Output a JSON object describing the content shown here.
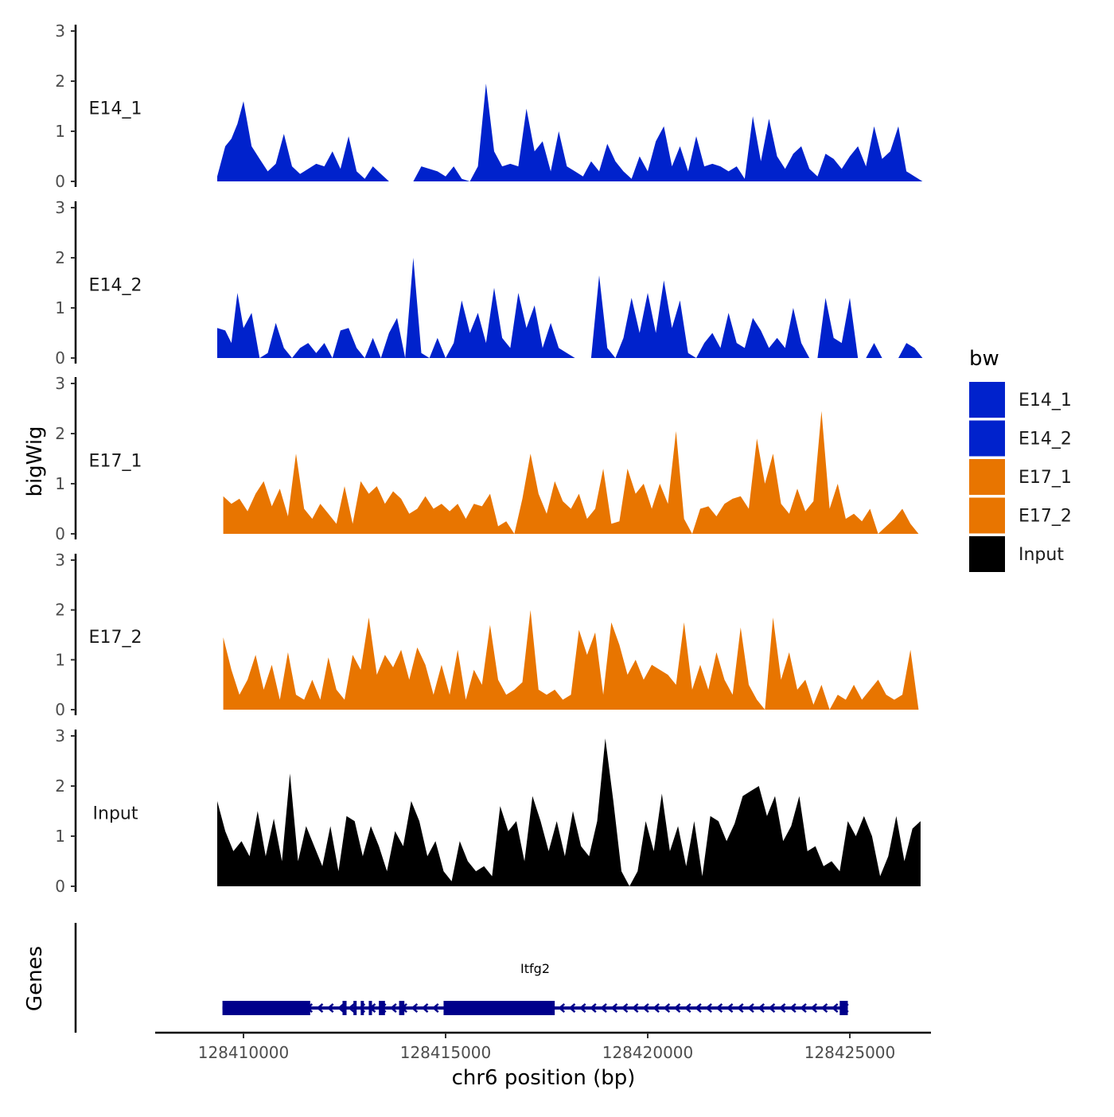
{
  "chart_data": {
    "type": "area",
    "title": "",
    "xlabel": "chr6 position (bp)",
    "ylabel": "bigWig",
    "gene_track_label": "Genes",
    "xlim": [
      128407500,
      128426800
    ],
    "ylim": [
      0,
      3
    ],
    "yticks": [
      0,
      1,
      2,
      3
    ],
    "xticks": [
      128410000,
      128415000,
      128420000,
      128425000
    ],
    "xtick_labels": [
      "128410000",
      "128415000",
      "128420000",
      "128425000"
    ],
    "legend": {
      "title": "bw",
      "position": "right",
      "entries": [
        {
          "label": "E14_1",
          "color": "#0022cc"
        },
        {
          "label": "E14_2",
          "color": "#0022cc"
        },
        {
          "label": "E17_1",
          "color": "#e87500"
        },
        {
          "label": "E17_2",
          "color": "#e87500"
        },
        {
          "label": "Input",
          "color": "#000000"
        }
      ]
    },
    "series": [
      {
        "name": "E14_1",
        "color": "#0022cc",
        "x": [
          128409350,
          128409550,
          128409700,
          128409850,
          128410000,
          128410200,
          128410400,
          128410600,
          128410800,
          128411000,
          128411200,
          128411400,
          128411600,
          128411800,
          128412000,
          128412200,
          128412400,
          128412600,
          128412800,
          128413000,
          128413200,
          128413400,
          128413600,
          128413800,
          128414000,
          128414200,
          128414400,
          128414600,
          128414800,
          128415000,
          128415200,
          128415400,
          128415600,
          128415800,
          128416000,
          128416200,
          128416400,
          128416600,
          128416800,
          128417000,
          128417200,
          128417400,
          128417600,
          128417800,
          128418000,
          128418200,
          128418400,
          128418600,
          128418800,
          128419000,
          128419200,
          128419400,
          128419600,
          128419800,
          128420000,
          128420200,
          128420400,
          128420600,
          128420800,
          128421000,
          128421200,
          128421400,
          128421600,
          128421800,
          128422000,
          128422200,
          128422400,
          128422600,
          128422800,
          128423000,
          128423200,
          128423400,
          128423600,
          128423800,
          128424000,
          128424200,
          128424400,
          128424600,
          128424800,
          128425000,
          128425200,
          128425400,
          128425600,
          128425800,
          128426000,
          128426200,
          128426400,
          128426600,
          128426800
        ],
        "values": [
          0.1,
          0.7,
          0.85,
          1.15,
          1.6,
          0.7,
          0.45,
          0.2,
          0.35,
          0.95,
          0.3,
          0.15,
          0.25,
          0.35,
          0.3,
          0.6,
          0.25,
          0.9,
          0.2,
          0.05,
          0.3,
          0.15,
          0,
          0,
          0,
          0,
          0.3,
          0.25,
          0.2,
          0.1,
          0.3,
          0.05,
          0,
          0.3,
          1.95,
          0.6,
          0.3,
          0.35,
          0.3,
          1.45,
          0.6,
          0.8,
          0.2,
          1.0,
          0.3,
          0.2,
          0.1,
          0.4,
          0.2,
          0.75,
          0.4,
          0.2,
          0.05,
          0.5,
          0.2,
          0.8,
          1.1,
          0.3,
          0.7,
          0.2,
          0.9,
          0.3,
          0.35,
          0.3,
          0.2,
          0.3,
          0.05,
          1.3,
          0.4,
          1.25,
          0.5,
          0.25,
          0.55,
          0.7,
          0.25,
          0.1,
          0.55,
          0.45,
          0.25,
          0.5,
          0.7,
          0.3,
          1.1,
          0.45,
          0.6,
          1.1,
          0.2,
          0.1,
          0
        ]
      },
      {
        "name": "E14_2",
        "color": "#0022cc",
        "x": [
          128409350,
          128409550,
          128409700,
          128409850,
          128410000,
          128410200,
          128410400,
          128410600,
          128410800,
          128411000,
          128411200,
          128411400,
          128411600,
          128411800,
          128412000,
          128412200,
          128412400,
          128412600,
          128412800,
          128413000,
          128413200,
          128413400,
          128413600,
          128413800,
          128414000,
          128414200,
          128414400,
          128414600,
          128414800,
          128415000,
          128415200,
          128415400,
          128415600,
          128415800,
          128416000,
          128416200,
          128416400,
          128416600,
          128416800,
          128417000,
          128417200,
          128417400,
          128417600,
          128417800,
          128418000,
          128418200,
          128418400,
          128418600,
          128418800,
          128419000,
          128419200,
          128419400,
          128419600,
          128419800,
          128420000,
          128420200,
          128420400,
          128420600,
          128420800,
          128421000,
          128421200,
          128421400,
          128421600,
          128421800,
          128422000,
          128422200,
          128422400,
          128422600,
          128422800,
          128423000,
          128423200,
          128423400,
          128423600,
          128423800,
          128424000,
          128424200,
          128424400,
          128424600,
          128424800,
          128425000,
          128425200,
          128425400,
          128425600,
          128425800,
          128426000,
          128426200,
          128426400,
          128426600,
          128426800
        ],
        "values": [
          0.6,
          0.55,
          0.3,
          1.3,
          0.6,
          0.9,
          0,
          0.1,
          0.7,
          0.2,
          0,
          0.2,
          0.3,
          0.1,
          0.3,
          0,
          0.55,
          0.6,
          0.2,
          0,
          0.4,
          0,
          0.5,
          0.8,
          0,
          2.0,
          0.1,
          0,
          0.4,
          0,
          0.3,
          1.15,
          0.5,
          0.9,
          0.3,
          1.4,
          0.4,
          0.2,
          1.3,
          0.6,
          1.05,
          0.2,
          0.7,
          0.2,
          0.1,
          0,
          0,
          0,
          1.65,
          0.2,
          0,
          0.4,
          1.2,
          0.5,
          1.3,
          0.5,
          1.55,
          0.6,
          1.15,
          0.1,
          0,
          0.3,
          0.5,
          0.2,
          0.9,
          0.3,
          0.2,
          0.8,
          0.55,
          0.2,
          0.4,
          0.2,
          1.0,
          0.3,
          0,
          0,
          1.2,
          0.4,
          0.3,
          1.2,
          0,
          0,
          0.3,
          0,
          0,
          0,
          0.3,
          0.2,
          0
        ]
      },
      {
        "name": "E17_1",
        "color": "#e87500",
        "x": [
          128409500,
          128409700,
          128409900,
          128410100,
          128410300,
          128410500,
          128410700,
          128410900,
          128411100,
          128411300,
          128411500,
          128411700,
          128411900,
          128412100,
          128412300,
          128412500,
          128412700,
          128412900,
          128413100,
          128413300,
          128413500,
          128413700,
          128413900,
          128414100,
          128414300,
          128414500,
          128414700,
          128414900,
          128415100,
          128415300,
          128415500,
          128415700,
          128415900,
          128416100,
          128416300,
          128416500,
          128416700,
          128416900,
          128417100,
          128417300,
          128417500,
          128417700,
          128417900,
          128418100,
          128418300,
          128418500,
          128418700,
          128418900,
          128419100,
          128419300,
          128419500,
          128419700,
          128419900,
          128420100,
          128420300,
          128420500,
          128420700,
          128420900,
          128421100,
          128421300,
          128421500,
          128421700,
          128421900,
          128422100,
          128422300,
          128422500,
          128422700,
          128422900,
          128423100,
          128423300,
          128423500,
          128423700,
          128423900,
          128424100,
          128424300,
          128424500,
          128424700,
          128424900,
          128425100,
          128425300,
          128425500,
          128425700,
          128425900,
          128426100,
          128426300,
          128426500,
          128426700
        ],
        "values": [
          0.75,
          0.6,
          0.7,
          0.45,
          0.8,
          1.05,
          0.55,
          0.9,
          0.35,
          1.6,
          0.5,
          0.3,
          0.6,
          0.4,
          0.2,
          0.95,
          0.2,
          1.05,
          0.8,
          0.95,
          0.6,
          0.85,
          0.7,
          0.4,
          0.5,
          0.75,
          0.5,
          0.6,
          0.45,
          0.6,
          0.3,
          0.6,
          0.55,
          0.8,
          0.15,
          0.25,
          0,
          0.7,
          1.6,
          0.8,
          0.4,
          1.05,
          0.65,
          0.5,
          0.8,
          0.3,
          0.5,
          1.3,
          0.2,
          0.25,
          1.3,
          0.8,
          1.0,
          0.5,
          1.0,
          0.6,
          2.05,
          0.3,
          0,
          0.5,
          0.55,
          0.35,
          0.6,
          0.7,
          0.75,
          0.5,
          1.9,
          1.0,
          1.6,
          0.6,
          0.4,
          0.9,
          0.45,
          0.65,
          2.45,
          0.5,
          1.0,
          0.3,
          0.4,
          0.25,
          0.5,
          0,
          0.15,
          0.3,
          0.5,
          0.2,
          0
        ]
      },
      {
        "name": "E17_2",
        "color": "#e87500",
        "x": [
          128409500,
          128409700,
          128409900,
          128410100,
          128410300,
          128410500,
          128410700,
          128410900,
          128411100,
          128411300,
          128411500,
          128411700,
          128411900,
          128412100,
          128412300,
          128412500,
          128412700,
          128412900,
          128413100,
          128413300,
          128413500,
          128413700,
          128413900,
          128414100,
          128414300,
          128414500,
          128414700,
          128414900,
          128415100,
          128415300,
          128415500,
          128415700,
          128415900,
          128416100,
          128416300,
          128416500,
          128416700,
          128416900,
          128417100,
          128417300,
          128417500,
          128417700,
          128417900,
          128418100,
          128418300,
          128418500,
          128418700,
          128418900,
          128419100,
          128419300,
          128419500,
          128419700,
          128419900,
          128420100,
          128420300,
          128420500,
          128420700,
          128420900,
          128421100,
          128421300,
          128421500,
          128421700,
          128421900,
          128422100,
          128422300,
          128422500,
          128422700,
          128422900,
          128423100,
          128423300,
          128423500,
          128423700,
          128423900,
          128424100,
          128424300,
          128424500,
          128424700,
          128424900,
          128425100,
          128425300,
          128425500,
          128425700,
          128425900,
          128426100,
          128426300,
          128426500,
          128426700
        ],
        "values": [
          1.45,
          0.8,
          0.3,
          0.6,
          1.1,
          0.4,
          0.9,
          0.2,
          1.15,
          0.3,
          0.2,
          0.6,
          0.2,
          1.05,
          0.4,
          0.2,
          1.1,
          0.8,
          1.85,
          0.7,
          1.1,
          0.85,
          1.2,
          0.6,
          1.25,
          0.9,
          0.3,
          0.9,
          0.3,
          1.2,
          0.2,
          0.8,
          0.5,
          1.7,
          0.6,
          0.3,
          0.4,
          0.55,
          2.0,
          0.4,
          0.3,
          0.4,
          0.2,
          0.3,
          1.6,
          1.1,
          1.55,
          0.3,
          1.75,
          1.3,
          0.7,
          1.0,
          0.6,
          0.9,
          0.8,
          0.7,
          0.5,
          1.75,
          0.4,
          0.9,
          0.4,
          1.15,
          0.6,
          0.3,
          1.65,
          0.5,
          0.2,
          0,
          1.85,
          0.6,
          1.15,
          0.4,
          0.6,
          0.1,
          0.5,
          0,
          0.3,
          0.2,
          0.5,
          0.2,
          0.4,
          0.6,
          0.3,
          0.2,
          0.3,
          1.2,
          0
        ]
      },
      {
        "name": "Input",
        "color": "#000000",
        "x": [
          128409350,
          128409550,
          128409750,
          128409950,
          128410150,
          128410350,
          128410550,
          128410750,
          128410950,
          128411150,
          128411350,
          128411550,
          128411750,
          128411950,
          128412150,
          128412350,
          128412550,
          128412750,
          128412950,
          128413150,
          128413350,
          128413550,
          128413750,
          128413950,
          128414150,
          128414350,
          128414550,
          128414750,
          128414950,
          128415150,
          128415350,
          128415550,
          128415750,
          128415950,
          128416150,
          128416350,
          128416550,
          128416750,
          128416950,
          128417150,
          128417350,
          128417550,
          128417750,
          128417950,
          128418150,
          128418350,
          128418550,
          128418750,
          128418950,
          128419150,
          128419350,
          128419550,
          128419750,
          128419950,
          128420150,
          128420350,
          128420550,
          128420750,
          128420950,
          128421150,
          128421350,
          128421550,
          128421750,
          128421950,
          128422150,
          128422350,
          128422550,
          128422750,
          128422950,
          128423150,
          128423350,
          128423550,
          128423750,
          128423950,
          128424150,
          128424350,
          128424550,
          128424750,
          128424950,
          128425150,
          128425350,
          128425550,
          128425750,
          128425950,
          128426150,
          128426350,
          128426550,
          128426750
        ],
        "values": [
          1.7,
          1.1,
          0.7,
          0.9,
          0.6,
          1.5,
          0.6,
          1.35,
          0.5,
          2.25,
          0.5,
          1.2,
          0.8,
          0.4,
          1.2,
          0.3,
          1.4,
          1.3,
          0.6,
          1.2,
          0.8,
          0.3,
          1.1,
          0.8,
          1.7,
          1.3,
          0.6,
          0.9,
          0.3,
          0.1,
          0.9,
          0.5,
          0.3,
          0.4,
          0.2,
          1.6,
          1.1,
          1.3,
          0.5,
          1.8,
          1.3,
          0.7,
          1.3,
          0.6,
          1.5,
          0.8,
          0.6,
          1.3,
          2.95,
          1.7,
          0.3,
          0,
          0.3,
          1.3,
          0.7,
          1.85,
          0.7,
          1.2,
          0.4,
          1.3,
          0.2,
          1.4,
          1.3,
          0.9,
          1.25,
          1.8,
          1.9,
          2.0,
          1.4,
          1.8,
          0.9,
          1.2,
          1.8,
          0.7,
          0.8,
          0.4,
          0.5,
          0.3,
          1.3,
          1.0,
          1.4,
          1.0,
          0.2,
          0.6,
          1.4,
          0.5,
          1.15,
          1.3
        ]
      }
    ],
    "gene": {
      "name": "Itfg2",
      "color": "#00008b",
      "strand": "-",
      "start": 128409480,
      "end": 128424950,
      "exons": [
        [
          128409480,
          128411650
        ],
        [
          128412450,
          128412550
        ],
        [
          128412720,
          128412800
        ],
        [
          128412900,
          128412950
        ],
        [
          128413100,
          128413150
        ],
        [
          128413350,
          128413500
        ],
        [
          128413850,
          128413980
        ],
        [
          128414950,
          128417700
        ],
        [
          128424750,
          128424950
        ]
      ]
    }
  }
}
